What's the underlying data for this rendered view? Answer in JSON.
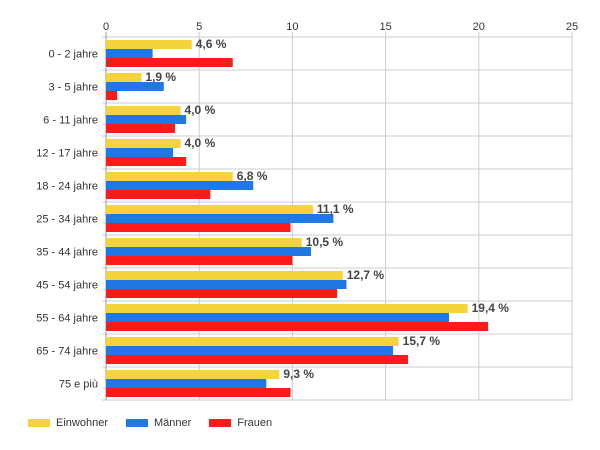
{
  "chart_data": {
    "type": "bar",
    "orientation": "horizontal",
    "categories": [
      "0 - 2 jahre",
      "3 - 5 jahre",
      "6 - 11 jahre",
      "12 - 17 jahre",
      "18 - 24 jahre",
      "25 - 34 jahre",
      "35 - 44 jahre",
      "45 - 54 jahre",
      "55 - 64 jahre",
      "65 - 74 jahre",
      "75 e più"
    ],
    "series": [
      {
        "name": "Einwohner",
        "color": "#f5d33a",
        "values": [
          4.6,
          1.9,
          4.0,
          4.0,
          6.8,
          11.1,
          10.5,
          12.7,
          19.4,
          15.7,
          9.3
        ]
      },
      {
        "name": "Männer",
        "color": "#1f78e6",
        "values": [
          2.5,
          3.1,
          4.3,
          3.6,
          7.9,
          12.2,
          11.0,
          12.9,
          18.4,
          15.4,
          8.6
        ]
      },
      {
        "name": "Frauen",
        "color": "#ff1a1a",
        "values": [
          6.8,
          0.6,
          3.7,
          4.3,
          5.6,
          9.9,
          10.0,
          12.4,
          20.5,
          16.2,
          9.9
        ]
      }
    ],
    "data_labels": [
      "4,6 %",
      "1,9 %",
      "4,0 %",
      "4,0 %",
      "6,8 %",
      "11,1 %",
      "10,5 %",
      "12,7 %",
      "19,4 %",
      "15,7 %",
      "9,3 %"
    ],
    "xticks": [
      "0",
      "5",
      "10",
      "15",
      "20",
      "25"
    ],
    "xlim": [
      0,
      25
    ],
    "grid": true,
    "legend_position": "bottom-left",
    "axis_position": "top",
    "title": "",
    "xlabel": "",
    "ylabel": ""
  }
}
